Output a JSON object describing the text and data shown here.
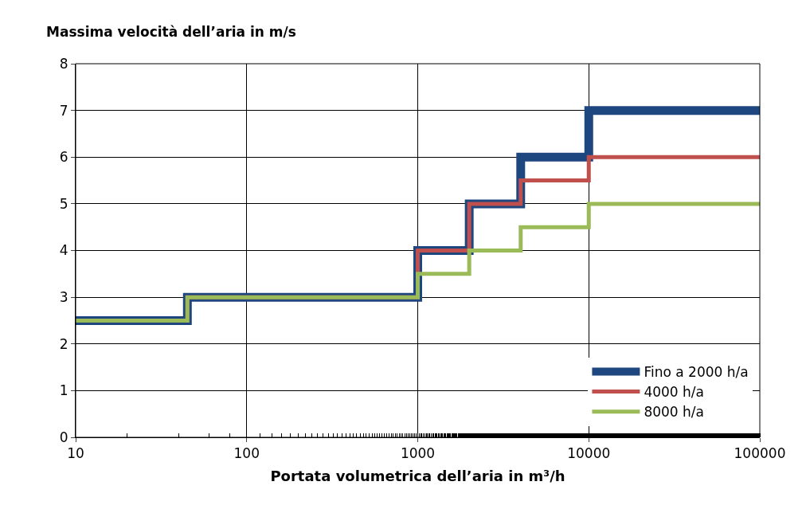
{
  "chart_data": {
    "type": "step",
    "xlabel": "Portata volumetrica dell’aria in m³/h",
    "ylabel": "Massima velocità dell’aria in m/s",
    "x": [
      10,
      45,
      1000,
      2000,
      4000,
      10000,
      100000
    ],
    "series": [
      {
        "name": "Fino a 2000 h/a",
        "color": "#1f477f",
        "values": [
          2.5,
          3,
          4,
          5,
          6,
          7,
          7
        ]
      },
      {
        "name": "4000 h/a",
        "color": "#c0504d",
        "values": [
          2.5,
          3,
          4,
          5,
          5.5,
          6,
          6
        ]
      },
      {
        "name": "8000 h/a",
        "color": "#9bbb59",
        "values": [
          2.5,
          3,
          3.5,
          4,
          4.5,
          5,
          5
        ]
      }
    ],
    "log": "x",
    "xlim": [
      10,
      100000
    ],
    "xticks": [
      10,
      100,
      1000,
      10000,
      100000
    ],
    "ylim": [
      0,
      8
    ],
    "yticks": [
      0,
      1,
      2,
      3,
      4,
      5,
      6,
      7,
      8
    ],
    "grid": true,
    "legend": "bottom right",
    "marker": "none",
    "line_style": "solid"
  }
}
